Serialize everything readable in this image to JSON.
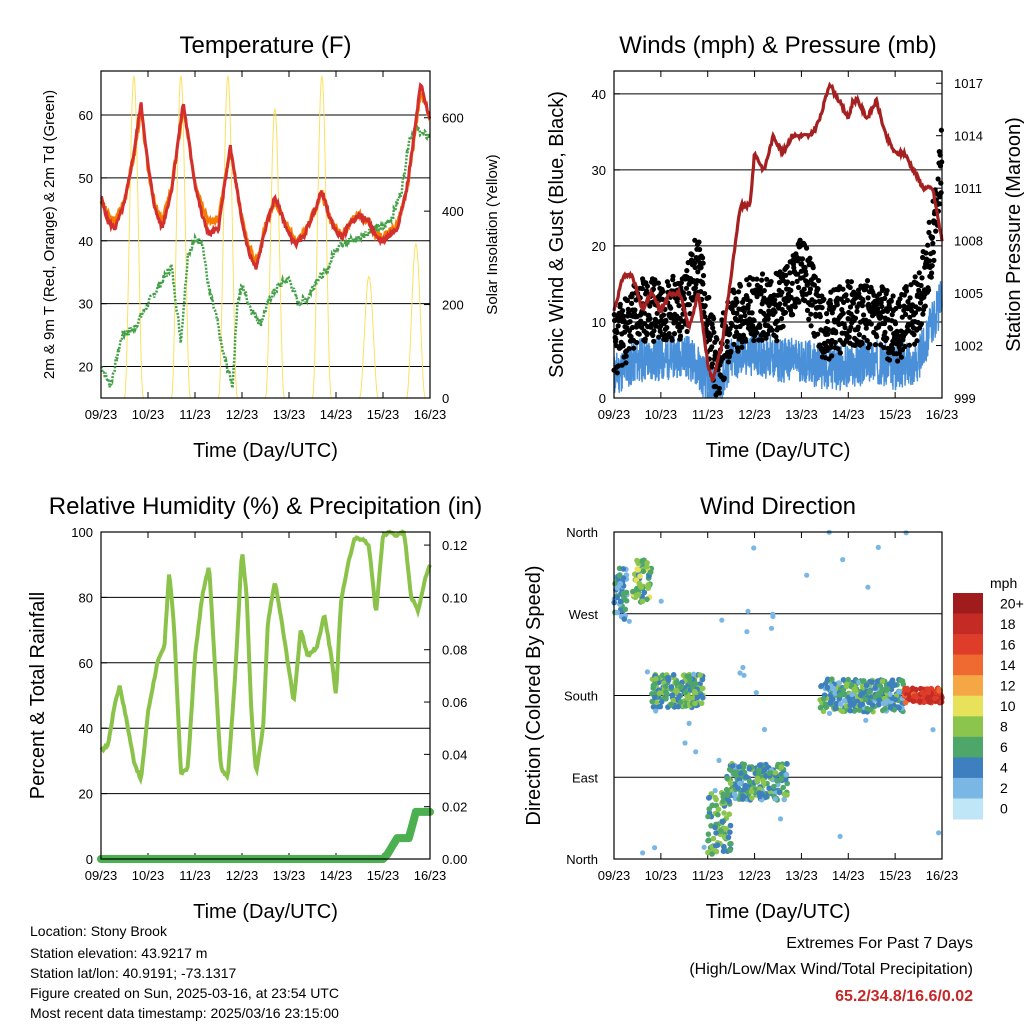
{
  "chart_data": [
    {
      "id": "temperature",
      "type": "line",
      "title": "Temperature (F)",
      "xlabel": "Time (Day/UTC)",
      "ylabel": "2m & 9m T (Red, Orange) & 2m Td (Green)",
      "ylabel_right": "Solar Insolation (Yellow)",
      "x_ticks": [
        "09/23",
        "10/23",
        "11/23",
        "12/23",
        "13/23",
        "14/23",
        "15/23",
        "16/23"
      ],
      "ylim": [
        15,
        67
      ],
      "y_ticks": [
        20,
        30,
        40,
        50,
        60
      ],
      "y2lim": [
        0,
        700
      ],
      "y2_ticks": [
        0,
        200,
        400,
        600
      ],
      "grid": true,
      "series": [
        {
          "name": "2m T",
          "color": "#d32f2f",
          "x": [
            0,
            0.15,
            0.3,
            0.5,
            0.7,
            0.85,
            1.0,
            1.15,
            1.3,
            1.5,
            1.75,
            2.0,
            2.15,
            2.3,
            2.5,
            2.75,
            3.0,
            3.15,
            3.3,
            3.5,
            3.7,
            3.85,
            4.0,
            4.15,
            4.3,
            4.5,
            4.7,
            4.85,
            5.0,
            5.15,
            5.3,
            5.5,
            5.7,
            5.85,
            6.0,
            6.15,
            6.3,
            6.5,
            6.65,
            6.8,
            6.9,
            7.0
          ],
          "values": [
            47,
            43,
            42,
            46,
            54,
            62,
            52,
            45,
            42,
            48,
            62,
            49,
            44,
            41,
            42,
            55,
            43,
            38,
            35.5,
            42,
            47,
            44,
            41,
            39.5,
            40.5,
            44,
            48,
            44,
            41.5,
            40.5,
            43,
            44,
            43,
            40.5,
            40,
            41,
            42,
            48,
            56,
            65,
            62,
            59.5
          ]
        },
        {
          "name": "9m T",
          "color": "#f57c00",
          "x": [
            0,
            0.15,
            0.3,
            0.5,
            0.7,
            0.85,
            1.0,
            1.15,
            1.3,
            1.5,
            1.75,
            2.0,
            2.15,
            2.3,
            2.5,
            2.75,
            3.0,
            3.15,
            3.3,
            3.5,
            3.7,
            3.85,
            4.0,
            4.15,
            4.3,
            4.5,
            4.7,
            4.85,
            5.0,
            5.15,
            5.3,
            5.5,
            5.7,
            5.85,
            6.0,
            6.15,
            6.3,
            6.5,
            6.65,
            6.8,
            6.9,
            7.0
          ],
          "values": [
            46.5,
            44,
            43,
            46.5,
            53.5,
            61,
            51.5,
            45.5,
            43,
            48.5,
            61,
            49.5,
            46,
            43,
            43.5,
            54.5,
            43.5,
            39,
            36.5,
            42.5,
            46.5,
            44,
            41.5,
            40,
            41,
            44,
            47.5,
            44,
            42,
            41,
            43,
            44,
            43,
            41,
            40.5,
            41.5,
            42.5,
            47.5,
            55.5,
            64,
            61.5,
            59.5
          ]
        },
        {
          "name": "2m Td",
          "color": "#43a047",
          "x": [
            0,
            0.2,
            0.45,
            0.7,
            1.0,
            1.25,
            1.5,
            1.7,
            1.85,
            2.0,
            2.15,
            2.3,
            2.45,
            2.6,
            2.8,
            2.9,
            3.0,
            3.2,
            3.4,
            3.6,
            3.8,
            4.0,
            4.2,
            4.4,
            4.6,
            4.8,
            5.0,
            5.2,
            5.4,
            5.6,
            5.8,
            6.0,
            6.2,
            6.4,
            6.55,
            6.7,
            6.85,
            7.0
          ],
          "values": [
            20,
            17,
            25,
            26,
            30,
            33,
            36,
            24,
            38,
            40,
            40,
            32,
            28,
            22,
            17,
            30,
            33,
            29,
            27,
            31,
            33,
            34,
            30,
            31,
            34,
            35,
            39,
            40,
            40,
            41,
            42,
            42,
            44,
            48,
            56,
            58,
            57,
            56.5
          ]
        },
        {
          "name": "Solar Insolation",
          "color": "#fce060",
          "axis": "right",
          "peaks_day": [
            0.7,
            1.7,
            2.7,
            3.7,
            4.7,
            5.7,
            6.7
          ],
          "peaks_value": [
            690,
            690,
            690,
            620,
            690,
            260,
            330
          ]
        }
      ]
    },
    {
      "id": "winds",
      "type": "line",
      "title": "Winds (mph) & Pressure (mb)",
      "xlabel": "Time (Day/UTC)",
      "ylabel": "Sonic Wind & Gust (Blue, Black)",
      "ylabel_right": "Station Pressure (Maroon)",
      "x_ticks": [
        "09/23",
        "10/23",
        "11/23",
        "12/23",
        "13/23",
        "14/23",
        "15/23",
        "16/23"
      ],
      "ylim": [
        0,
        43
      ],
      "y_ticks": [
        0,
        10,
        20,
        30,
        40
      ],
      "y2lim": [
        999,
        1017.7
      ],
      "y2_ticks": [
        999,
        1002,
        1005,
        1008,
        1011,
        1014,
        1017
      ],
      "grid": true,
      "series": [
        {
          "name": "Sonic Wind",
          "color": "#4a90d9",
          "x": [
            0,
            0.5,
            1.0,
            1.5,
            1.8,
            2.0,
            2.2,
            2.5,
            3.0,
            3.5,
            4.0,
            4.5,
            5.0,
            5.5,
            6.0,
            6.5,
            6.8,
            7.0
          ],
          "values": [
            3,
            5,
            5,
            6,
            4,
            2,
            1,
            5,
            6,
            5,
            5,
            4,
            4,
            5,
            4,
            5,
            10,
            13
          ]
        },
        {
          "name": "Gust",
          "color": "#000000",
          "x": [
            0,
            0.5,
            1.0,
            1.5,
            1.8,
            2.0,
            2.2,
            2.5,
            3.0,
            3.5,
            4.0,
            4.5,
            5.0,
            5.5,
            6.0,
            6.5,
            6.8,
            7.0
          ],
          "values": [
            7,
            11,
            12,
            12,
            18,
            10,
            4,
            10,
            12,
            12,
            17,
            9,
            11,
            11,
            9,
            12,
            21,
            32
          ]
        },
        {
          "name": "Station Pressure",
          "color": "#a52020",
          "axis": "right",
          "x": [
            0,
            0.2,
            0.4,
            0.6,
            0.8,
            1.0,
            1.2,
            1.4,
            1.6,
            1.8,
            2.0,
            2.1,
            2.3,
            2.5,
            2.7,
            2.9,
            3.0,
            3.2,
            3.4,
            3.6,
            3.8,
            4.0,
            4.2,
            4.4,
            4.6,
            4.8,
            5.0,
            5.1,
            5.2,
            5.4,
            5.6,
            5.8,
            6.0,
            6.2,
            6.4,
            6.6,
            6.8,
            7.0
          ],
          "values": [
            1004,
            1006,
            1006,
            1004,
            1005,
            1004,
            1005,
            1005,
            1003,
            1005,
            1001,
            1000,
            1002,
            1006,
            1010,
            1010,
            1013,
            1012,
            1014,
            1013,
            1014,
            1014,
            1014,
            1015,
            1017,
            1016,
            1015,
            1016,
            1016,
            1015,
            1016,
            1014,
            1013,
            1013,
            1012,
            1011,
            1011,
            1008
          ]
        }
      ]
    },
    {
      "id": "humidity",
      "type": "line",
      "title": "Relative Humidity (%) & Precipitation (in)",
      "xlabel": "Time (Day/UTC)",
      "ylabel": "Percent & Total Rainfall",
      "x_ticks": [
        "09/23",
        "10/23",
        "11/23",
        "12/23",
        "13/23",
        "14/23",
        "15/23",
        "16/23"
      ],
      "ylim": [
        0,
        100
      ],
      "y_ticks": [
        0,
        20,
        40,
        60,
        80,
        100
      ],
      "y2lim": [
        0,
        0.125
      ],
      "y2_ticks": [
        "0.00",
        "0.02",
        "0.04",
        "0.06",
        "0.08",
        "0.10",
        "0.12"
      ],
      "grid": true,
      "series": [
        {
          "name": "Relative Humidity",
          "color": "#8bc34a",
          "x": [
            0,
            0.15,
            0.3,
            0.4,
            0.55,
            0.7,
            0.85,
            1.0,
            1.2,
            1.35,
            1.45,
            1.55,
            1.7,
            1.85,
            2.0,
            2.15,
            2.3,
            2.4,
            2.55,
            2.7,
            2.85,
            3.0,
            3.1,
            3.2,
            3.3,
            3.45,
            3.55,
            3.7,
            3.85,
            4.0,
            4.1,
            4.25,
            4.4,
            4.6,
            4.75,
            4.9,
            5.0,
            5.1,
            5.25,
            5.4,
            5.55,
            5.7,
            5.85,
            6.0,
            6.15,
            6.3,
            6.45,
            6.6,
            6.75,
            6.9,
            7.0
          ],
          "values": [
            33,
            35,
            48,
            53,
            42,
            30,
            24,
            45,
            60,
            65,
            88,
            72,
            26,
            28,
            62,
            80,
            90,
            65,
            28,
            25,
            55,
            95,
            80,
            45,
            26,
            40,
            72,
            85,
            72,
            58,
            48,
            70,
            62,
            65,
            75,
            62,
            50,
            78,
            90,
            98,
            98,
            96,
            75,
            99,
            100,
            99,
            100,
            80,
            76,
            86,
            90
          ]
        },
        {
          "name": "Total Rainfall",
          "color": "#4caf50",
          "axis": "right",
          "x": [
            0,
            6.0,
            6.1,
            6.3,
            6.55,
            6.7,
            7.0
          ],
          "values": [
            0,
            0,
            0.002,
            0.008,
            0.008,
            0.018,
            0.018
          ]
        }
      ]
    },
    {
      "id": "wind_direction",
      "type": "scatter",
      "title": "Wind Direction",
      "xlabel": "Time (Day/UTC)",
      "ylabel": "Direction (Colored By Speed)",
      "x_ticks": [
        "09/23",
        "10/23",
        "11/23",
        "12/23",
        "13/23",
        "14/23",
        "15/23",
        "16/23"
      ],
      "y_ticks": [
        "North",
        "East",
        "South",
        "West",
        "North"
      ],
      "ylim_degrees": [
        0,
        360
      ],
      "grid": true,
      "colorbar": {
        "title": "mph",
        "labels": [
          "20+",
          "18",
          "16",
          "14",
          "12",
          "10",
          "8",
          "6",
          "4",
          "2",
          "0"
        ],
        "colors": [
          "#a01c1c",
          "#c42b25",
          "#de3d2a",
          "#ef6a30",
          "#f5a645",
          "#e8e25b",
          "#8cc54e",
          "#4ea769",
          "#3d7fbf",
          "#7ab7e5",
          "#bfe6f7"
        ]
      },
      "clusters": [
        {
          "x": [
            0,
            0.3
          ],
          "dir_center": 290,
          "dir_spread": 30,
          "speed": 4
        },
        {
          "x": [
            0.4,
            0.8
          ],
          "dir_center": 305,
          "dir_spread": 25,
          "speed": 7
        },
        {
          "x": [
            0.8,
            1.9
          ],
          "dir_center": 185,
          "dir_spread": 18,
          "speed": 6
        },
        {
          "x": [
            2.0,
            2.5
          ],
          "dir_center": 40,
          "dir_spread": 35,
          "speed": 6
        },
        {
          "x": [
            2.4,
            3.7
          ],
          "dir_center": 85,
          "dir_spread": 20,
          "speed": 5
        },
        {
          "x": [
            4.4,
            6.2
          ],
          "dir_center": 180,
          "dir_spread": 18,
          "speed": 5
        },
        {
          "x": [
            6.2,
            7.0
          ],
          "dir_center": 180,
          "dir_spread": 8,
          "speed": 16
        }
      ]
    }
  ],
  "info": {
    "location": "Location: Stony Brook",
    "elevation": "Station elevation: 43.9217 m",
    "latlon": "Station lat/lon: 40.9191; -73.1317",
    "created": "Figure created on Sun, 2025-03-16, at 23:54 UTC",
    "latest": "Most recent data timestamp: 2025/03/16 23:15:00"
  },
  "extremes": {
    "title": "Extremes For Past 7 Days",
    "subtitle": "(High/Low/Max Wind/Total Precipitation)",
    "values": "65.2/34.8/16.6/0.02"
  }
}
